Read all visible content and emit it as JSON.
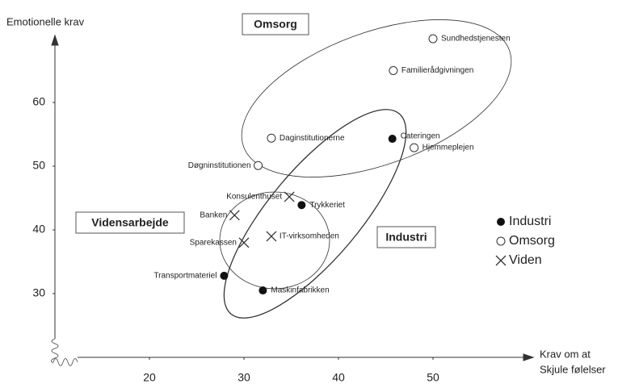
{
  "chart_data": {
    "type": "scatter",
    "ylabel": "Emotionelle krav",
    "xlabel": [
      "Krav om at",
      "Skjule følelser"
    ],
    "xlim": [
      10,
      60
    ],
    "ylim": [
      20,
      70
    ],
    "xticks": [
      20,
      30,
      40,
      50
    ],
    "yticks": [
      30,
      40,
      50,
      60
    ],
    "grid": false,
    "legend": "right",
    "annotations": [
      "Omsorg",
      "Vidensarbejde",
      "Industri"
    ],
    "series": [
      {
        "name": "Industri",
        "marker": "filled-circle",
        "color": "#111111",
        "labels": [
          "Cateringen",
          "Trykkeriet",
          "Transportmateriel",
          "Maskinfabrikken"
        ],
        "x": [
          45.7,
          36.1,
          27.9,
          32
        ],
        "values": [
          54.3,
          43.9,
          32.8,
          30.5
        ]
      },
      {
        "name": "Omsorg",
        "marker": "open-circle",
        "color": "#333333",
        "labels": [
          "Sundhedstjenesten",
          "Familierådgivningen",
          "Daginstitutionerne",
          "Døgninstitutionen",
          "Hjemmeplejen"
        ],
        "x": [
          50,
          45.8,
          32.9,
          31.5,
          48
        ],
        "values": [
          70,
          65,
          54.4,
          50.1,
          52.9
        ]
      },
      {
        "name": "Viden",
        "marker": "cross",
        "color": "#333333",
        "labels": [
          "Konsulenthuset",
          "Banken",
          "Sparekassen",
          "IT-virksomheden"
        ],
        "x": [
          34.8,
          29,
          30,
          32.9
        ],
        "values": [
          45.2,
          42.3,
          38,
          39
        ]
      }
    ]
  }
}
